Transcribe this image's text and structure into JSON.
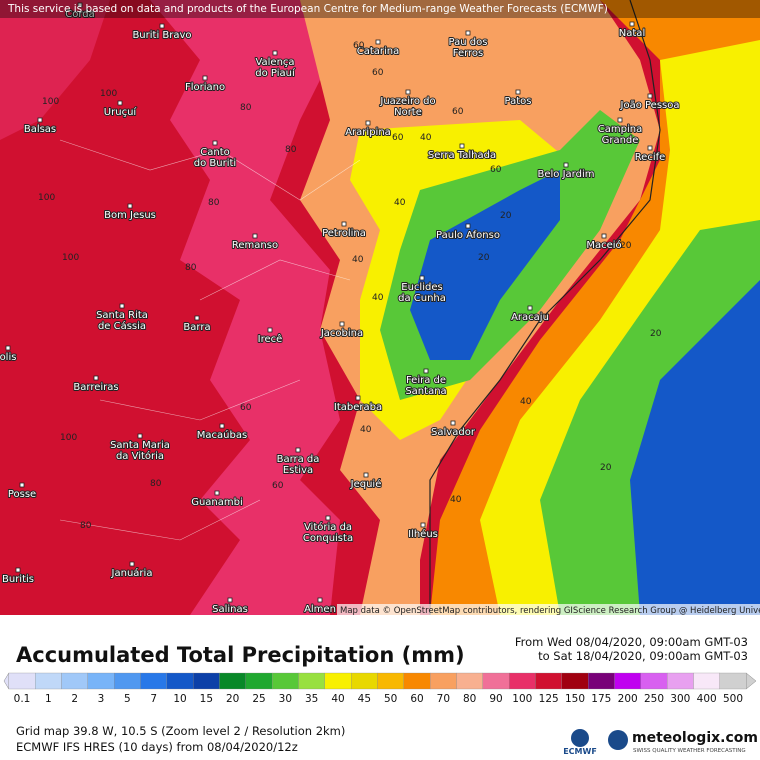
{
  "notice": "This service is based on data and products of the European Centre for Medium-range Weather Forecasts (ECMWF)",
  "cities": [
    [
      "Corda"
    ],
    [
      "Buriti Bravo"
    ],
    [
      "Catarina"
    ],
    [
      "Pau dos",
      "Ferros"
    ],
    [
      "Natal"
    ],
    [
      "Valença",
      "do Piauí"
    ],
    [
      "Floriano"
    ],
    [
      "Uruçuí"
    ],
    [
      "Juazeiro do",
      "Norte"
    ],
    [
      "Patos"
    ],
    [
      "João Pessoa"
    ],
    [
      "Campina",
      "Grande"
    ],
    [
      "Balsas"
    ],
    [
      "Araripina"
    ],
    [
      "Serra Talhada"
    ],
    [
      "Recife"
    ],
    [
      "Canto",
      "do Buriti"
    ],
    [
      "Belo Jardim"
    ],
    [
      "Bom Jesus"
    ],
    [
      "Petrolina"
    ],
    [
      "Paulo Afonso"
    ],
    [
      "Maceió"
    ],
    [
      "Remanso"
    ],
    [
      "Euclides",
      "da Cunha"
    ],
    [
      "Santa Rita",
      "de Cássia"
    ],
    [
      "Aracaju"
    ],
    [
      "Barra"
    ],
    [
      "Irecê"
    ],
    [
      "Jacobina"
    ],
    [
      "olis"
    ],
    [
      "Barreiras"
    ],
    [
      "Feira de",
      "Santana"
    ],
    [
      "Itaberaba"
    ],
    [
      "Salvador"
    ],
    [
      "Santa Maria",
      "da Vitória"
    ],
    [
      "Macaúbas"
    ],
    [
      "Barra da",
      "Estiva"
    ],
    [
      "Posse"
    ],
    [
      "Jequié"
    ],
    [
      "Guanambi"
    ],
    [
      "Vitória da",
      "Conquista"
    ],
    [
      "Ilhéus"
    ],
    [
      "Januária"
    ],
    [
      "Buritis"
    ],
    [
      "Salinas"
    ],
    [
      "Almen"
    ]
  ],
  "contours": [
    "100",
    "100",
    "60",
    "60",
    "80",
    "100",
    "80",
    "60",
    "40",
    "60",
    "40",
    "80",
    "100",
    "40",
    "20",
    "20",
    "60",
    "80",
    "40",
    "20",
    "40",
    "20",
    "60",
    "40",
    "60",
    "100",
    "80",
    "80",
    "20",
    "40"
  ],
  "attribution": "Map data © OpenStreetMap contributors, rendering GIScience Research Group @ Heidelberg University",
  "legend": {
    "title": "Accumulated Total Precipitation (mm)",
    "from": "From Wed 08/04/2020, 09:00am GMT-03",
    "to": "to Sat 18/04/2020, 09:00am GMT-03",
    "values": [
      "0.1",
      "1",
      "2",
      "3",
      "5",
      "7",
      "10",
      "15",
      "20",
      "25",
      "30",
      "35",
      "40",
      "45",
      "50",
      "60",
      "70",
      "80",
      "90",
      "100",
      "125",
      "150",
      "175",
      "200",
      "250",
      "300",
      "400",
      "500"
    ],
    "colors": [
      "#e0e0f8",
      "#c0d8f8",
      "#a0c8f8",
      "#78b4f8",
      "#5098f0",
      "#2878e8",
      "#1458c8",
      "#0c40a8",
      "#088828",
      "#20a830",
      "#58c838",
      "#98e040",
      "#f8f000",
      "#e8d800",
      "#f8b800",
      "#f88800",
      "#f8a060",
      "#f8b090",
      "#f07098",
      "#e83068",
      "#d01030",
      "#a00010",
      "#780078",
      "#c000f0",
      "#d860f0",
      "#e8a0f0",
      "#f8e8f8",
      "#d0d0d0"
    ]
  },
  "footer": {
    "grid": "Grid map 39.8 W, 10.5 S (Zoom level 2 / Resolution 2km)",
    "model": "ECMWF IFS HRES (10 days) from 08/04/2020/12z",
    "ecmwf": "ECMWF",
    "brand": "meteologix.com",
    "tagline": "SWISS QUALITY WEATHER FORECASTING"
  }
}
